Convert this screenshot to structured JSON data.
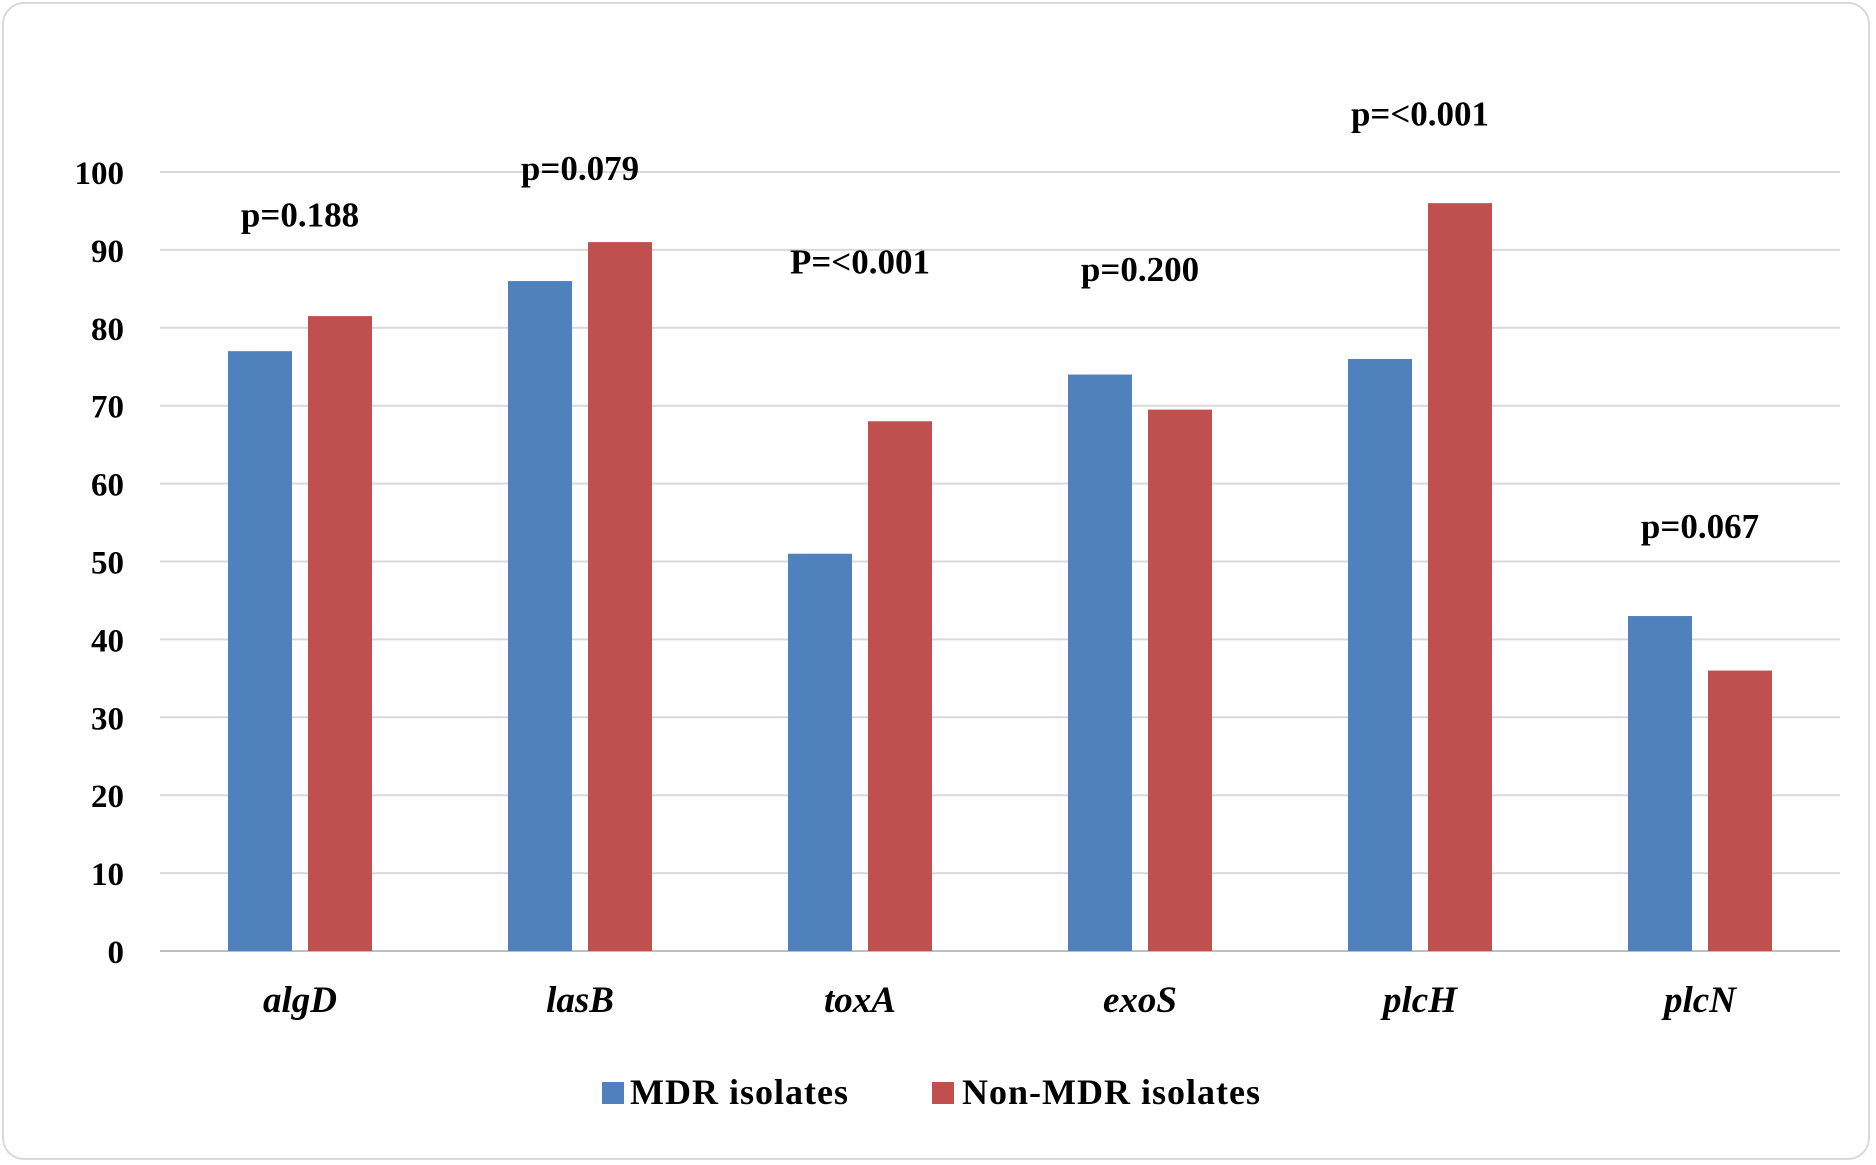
{
  "chart_data": {
    "type": "bar",
    "title": "",
    "xlabel": "",
    "ylabel": "",
    "ylim": [
      0,
      100
    ],
    "yticks": [
      0,
      10,
      20,
      30,
      40,
      50,
      60,
      70,
      80,
      90,
      100
    ],
    "grid": true,
    "legend_position": "bottom",
    "categories": [
      "algD",
      "lasB",
      "toxA",
      "exoS",
      "plcH",
      "plcN"
    ],
    "series": [
      {
        "name": "MDR isolates",
        "color": "#4f81bd",
        "values": [
          77,
          86,
          51,
          74,
          76,
          43
        ]
      },
      {
        "name": "Non-MDR isolates",
        "color": "#c0504d",
        "values": [
          81.5,
          91,
          68,
          69.5,
          96,
          36
        ]
      }
    ],
    "annotations": [
      {
        "category": "algD",
        "text": "p=0.188",
        "value": 93
      },
      {
        "category": "lasB",
        "text": "p=0.079",
        "value": 99
      },
      {
        "category": "toxA",
        "text": "P=<0.001",
        "value": 87
      },
      {
        "category": "exoS",
        "text": "p=0.200",
        "value": 86
      },
      {
        "category": "plcH",
        "text": "p=<0.001",
        "value": 106
      },
      {
        "category": "plcN",
        "text": "p=0.067",
        "value": 53
      }
    ]
  }
}
